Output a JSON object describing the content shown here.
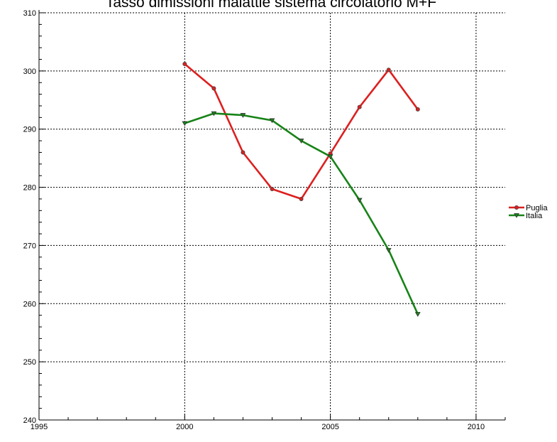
{
  "chart_data": {
    "type": "line",
    "title": "Tasso dimissioni malattie sistema circolatorio M+F",
    "xlabel": "",
    "ylabel": "",
    "xlim": [
      1995,
      2011
    ],
    "ylim": [
      240,
      310
    ],
    "x_ticks": [
      1995,
      2000,
      2005,
      2010
    ],
    "y_ticks": [
      240,
      250,
      260,
      270,
      280,
      290,
      300,
      310
    ],
    "grid": true,
    "legend": "right",
    "series": [
      {
        "name": "Puglia",
        "color": "#dd1f1f",
        "marker": "circle",
        "x": [
          2000,
          2001,
          2002,
          2003,
          2004,
          2005,
          2006,
          2007,
          2008
        ],
        "y": [
          301.2,
          297.0,
          286.0,
          279.7,
          278.0,
          285.8,
          293.8,
          300.2,
          293.4
        ]
      },
      {
        "name": "Italia",
        "color": "#178317",
        "marker": "triangle-down",
        "x": [
          2000,
          2001,
          2002,
          2003,
          2004,
          2005,
          2006,
          2007,
          2008
        ],
        "y": [
          291.0,
          292.7,
          292.4,
          291.5,
          288.0,
          285.3,
          277.8,
          269.2,
          258.2
        ]
      }
    ]
  }
}
